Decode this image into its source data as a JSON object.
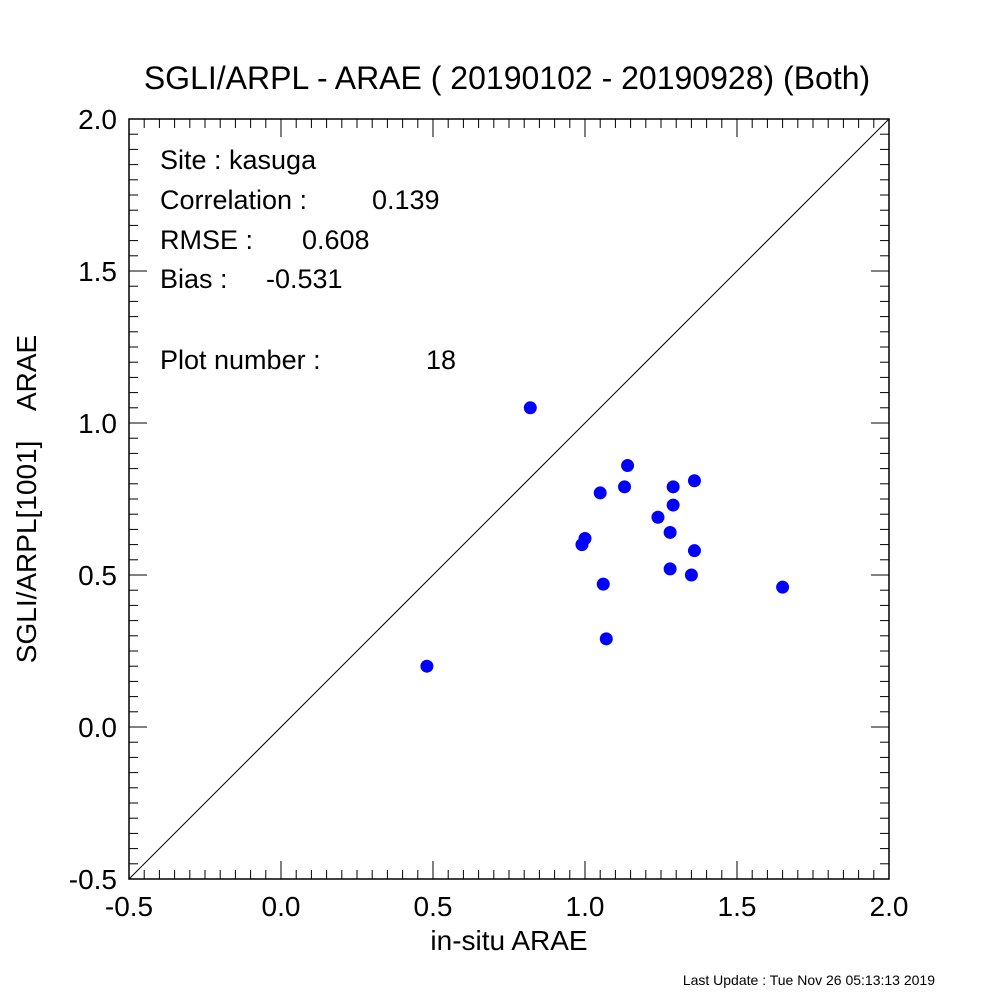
{
  "chart_data": {
    "type": "scatter",
    "title": "SGLI/ARPL - ARAE ( 20190102 - 20190928) (Both)",
    "xlabel": "in-situ ARAE",
    "ylabel": "SGLI/ARPL[1001]    ARAE",
    "xlim": [
      -0.5,
      2.0
    ],
    "ylim": [
      -0.5,
      2.0
    ],
    "x_tick_labels": [
      "-0.5",
      "0.0",
      "0.5",
      "1.0",
      "1.5",
      "2.0"
    ],
    "y_tick_labels": [
      "-0.5",
      "0.0",
      "0.5",
      "1.0",
      "1.5",
      "2.0"
    ],
    "one_to_one_line": true,
    "grid": false,
    "point_color": "#0000ff",
    "points": [
      {
        "x": 0.48,
        "y": 0.2
      },
      {
        "x": 0.82,
        "y": 1.05
      },
      {
        "x": 0.99,
        "y": 0.6
      },
      {
        "x": 1.0,
        "y": 0.62
      },
      {
        "x": 1.05,
        "y": 0.77
      },
      {
        "x": 1.06,
        "y": 0.47
      },
      {
        "x": 1.07,
        "y": 0.29
      },
      {
        "x": 1.13,
        "y": 0.79
      },
      {
        "x": 1.14,
        "y": 0.86
      },
      {
        "x": 1.24,
        "y": 0.69
      },
      {
        "x": 1.28,
        "y": 0.64
      },
      {
        "x": 1.28,
        "y": 0.52
      },
      {
        "x": 1.29,
        "y": 0.73
      },
      {
        "x": 1.29,
        "y": 0.79
      },
      {
        "x": 1.35,
        "y": 0.5
      },
      {
        "x": 1.36,
        "y": 0.58
      },
      {
        "x": 1.36,
        "y": 0.81
      },
      {
        "x": 1.65,
        "y": 0.46
      }
    ]
  },
  "stats": {
    "site": "Site : kasuga",
    "correlation_label": "Correlation :",
    "correlation_value": "0.139",
    "rmse_label": "RMSE :",
    "rmse_value": "0.608",
    "bias_label": "Bias :",
    "bias_value": "-0.531",
    "plot_number_label": "Plot number :",
    "plot_number_value": "18"
  },
  "footer": {
    "last_update": "Last Update : Tue Nov 26 05:13:13 2019"
  }
}
